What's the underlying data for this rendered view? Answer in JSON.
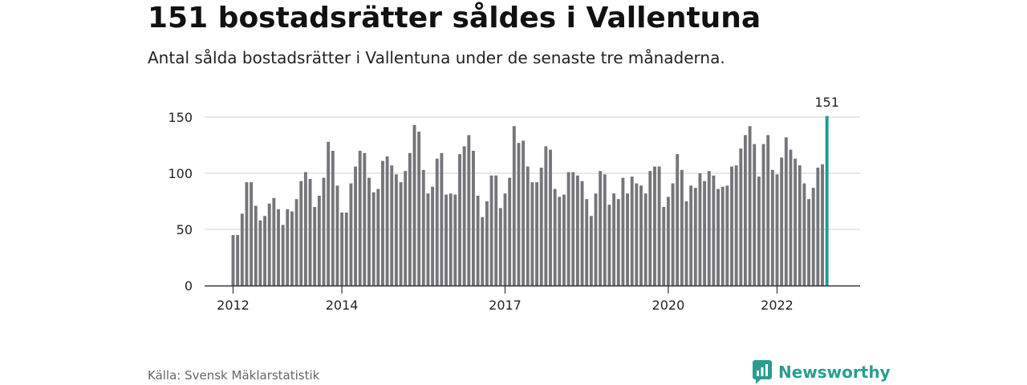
{
  "header": {
    "title": "151 bostadsrätter såldes i Vallentuna",
    "subtitle": "Antal sålda bostadsrätter i Vallentuna under de senaste tre månaderna."
  },
  "footer": {
    "source": "Källa: Svensk Mäklarstatistik",
    "brand": "Newsworthy",
    "brand_icon": "newsworthy-logo-icon"
  },
  "colors": {
    "bar": "#76757b",
    "highlight": "#1a9e92",
    "grid": "#d9d9d9",
    "axis": "#333333",
    "brand": "#2a9d8f"
  },
  "chart_data": {
    "type": "bar",
    "x_start": "2012-01",
    "interval": "month",
    "values": [
      45,
      45,
      64,
      92,
      92,
      71,
      58,
      62,
      73,
      78,
      68,
      54,
      68,
      66,
      77,
      93,
      101,
      95,
      70,
      80,
      96,
      128,
      120,
      89,
      65,
      65,
      91,
      106,
      120,
      118,
      96,
      83,
      86,
      111,
      115,
      107,
      99,
      92,
      102,
      118,
      143,
      137,
      103,
      82,
      88,
      113,
      118,
      81,
      82,
      81,
      117,
      124,
      134,
      120,
      80,
      61,
      75,
      98,
      98,
      69,
      82,
      96,
      142,
      127,
      129,
      106,
      92,
      92,
      105,
      124,
      121,
      86,
      79,
      81,
      101,
      101,
      98,
      93,
      77,
      62,
      82,
      102,
      99,
      72,
      82,
      77,
      96,
      82,
      97,
      91,
      89,
      82,
      102,
      106,
      106,
      70,
      79,
      91,
      117,
      103,
      75,
      89,
      87,
      100,
      93,
      102,
      98,
      86,
      88,
      89,
      106,
      107,
      122,
      134,
      142,
      126,
      97,
      126,
      134,
      103,
      99,
      114,
      132,
      121,
      113,
      107,
      91,
      77,
      87,
      105,
      108,
      151
    ],
    "highlight_index": 131,
    "highlight_label": "151",
    "x_ticks": [
      "2012",
      "2014",
      "2017",
      "2020",
      "2022"
    ],
    "x_tick_indices": [
      0,
      24,
      60,
      96,
      120
    ],
    "y_ticks": [
      "0",
      "50",
      "100",
      "150"
    ],
    "y_tick_values": [
      0,
      50,
      100,
      150
    ],
    "ylim": [
      0,
      151
    ],
    "grid": true
  }
}
